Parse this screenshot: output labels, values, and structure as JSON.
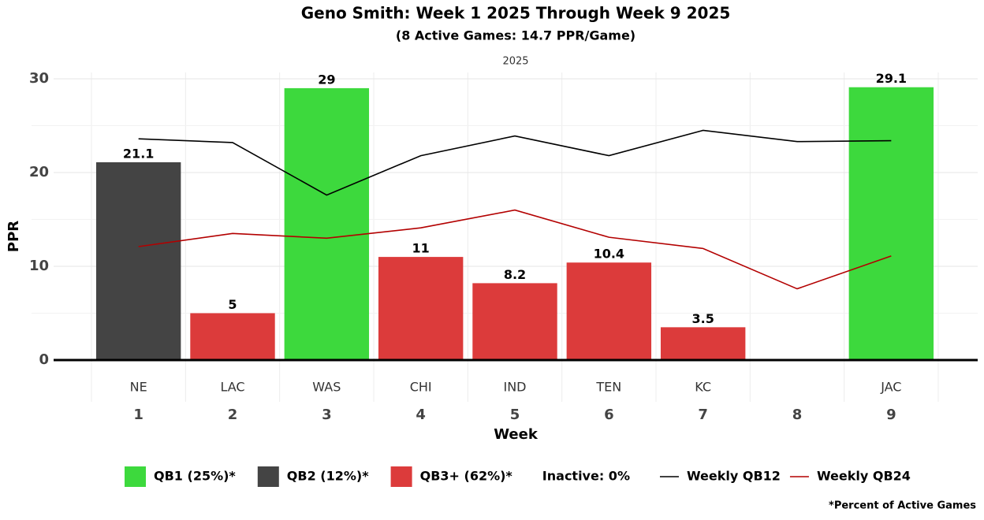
{
  "chart_data": {
    "type": "bar",
    "title": "Geno Smith: Week 1 2025 Through Week 9 2025",
    "subtitle": "(8 Active Games: 14.7 PPR/Game)",
    "facet_label": "2025",
    "x_label": "Week",
    "y_label": "PPR",
    "categories": [
      1,
      2,
      3,
      4,
      5,
      6,
      7,
      8,
      9
    ],
    "opponents": [
      "NE",
      "LAC",
      "WAS",
      "CHI",
      "IND",
      "TEN",
      "KC",
      null,
      "JAC"
    ],
    "values": [
      21.1,
      5,
      29,
      11,
      8.2,
      10.4,
      3.5,
      null,
      29.1
    ],
    "bar_colors": [
      "#444444",
      "#dc3b3b",
      "#3dd93d",
      "#dc3b3b",
      "#dc3b3b",
      "#dc3b3b",
      "#dc3b3b",
      null,
      "#3dd93d"
    ],
    "lines": [
      {
        "name": "Weekly QB12",
        "color": "#000000",
        "values": [
          23.6,
          23.2,
          17.6,
          21.8,
          23.9,
          21.8,
          24.5,
          23.3,
          23.4
        ]
      },
      {
        "name": "Weekly QB24",
        "color": "#b30000",
        "values": [
          12.1,
          13.5,
          13.0,
          14.1,
          16.0,
          13.1,
          11.9,
          7.6,
          11.1
        ]
      }
    ],
    "legend": [
      {
        "label": "QB1 (25%)*",
        "color": "#3dd93d"
      },
      {
        "label": "QB2 (12%)*",
        "color": "#444444"
      },
      {
        "label": "QB3+ (62%)*",
        "color": "#dc3b3b"
      },
      {
        "label": "Inactive: 0%",
        "color": null
      }
    ],
    "footnote": "*Percent of Active Games",
    "ylim": [
      0,
      30
    ],
    "yticks": [
      0,
      10,
      20,
      30
    ],
    "grid": true
  }
}
